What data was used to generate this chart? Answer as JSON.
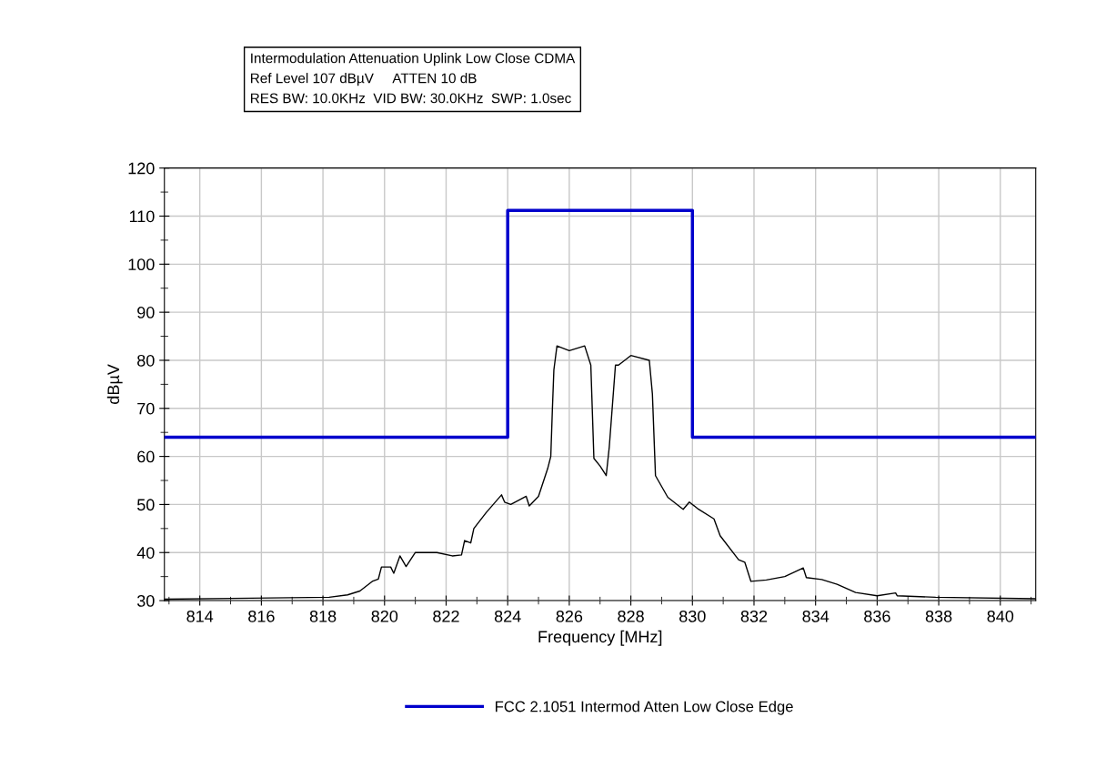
{
  "chart_data": {
    "type": "line",
    "title": "Intermodulation Attenuation Uplink Low Close CDMA",
    "subtitle": "Ref Level 107 dBµV     ATTEN 10 dB\nRES BW: 10.0KHz  VID BW: 30.0KHz  SWP: 1.0sec",
    "xlabel": "Frequency [MHz]",
    "ylabel": "dBµV",
    "series": [
      {
        "color": "#000000",
        "x": [
          812.85,
          818.2,
          818.8,
          819.2,
          819.6,
          819.8,
          819.9,
          820.2,
          820.3,
          820.5,
          820.7,
          821.0,
          821.7,
          822.2,
          822.5,
          822.6,
          822.8,
          822.9,
          823.3,
          823.8,
          823.9,
          824.1,
          824.6,
          824.7,
          825.0,
          825.3,
          825.4,
          825.45,
          825.5,
          825.6,
          826.0,
          826.5,
          826.7,
          826.8,
          827.0,
          827.2,
          827.3,
          827.5,
          827.6,
          828.0,
          828.6,
          828.7,
          828.8,
          829.2,
          829.7,
          829.9,
          830.2,
          830.7,
          830.9,
          831.5,
          831.7,
          831.9,
          832.4,
          833.0,
          833.6,
          833.7,
          834.2,
          834.7,
          835.3,
          836.0,
          836.6,
          836.65,
          837.9,
          841.15
        ],
        "values": [
          30.3,
          30.7,
          31.2,
          32,
          34,
          34.5,
          37,
          37,
          35.7,
          39.3,
          37.1,
          40,
          40,
          39.3,
          39.5,
          42.5,
          42,
          45,
          48.3,
          52,
          50.5,
          50,
          51.7,
          49.7,
          51.7,
          57.5,
          60,
          69.5,
          78,
          83,
          82,
          83,
          79,
          59.6,
          58,
          56,
          62,
          79,
          79,
          81,
          80,
          73,
          56,
          51.5,
          49,
          50.5,
          49,
          47,
          43.5,
          38.5,
          38,
          34,
          34.3,
          35,
          36.8,
          34.8,
          34.4,
          33.4,
          31.7,
          31,
          31.6,
          31,
          30.7,
          30.4
        ]
      },
      {
        "name": "FCC 2.1051 Intermod Atten Low Close Edge",
        "color": "#0000cc",
        "x": [
          812.85,
          824,
          824,
          830,
          830,
          841.15
        ],
        "values": [
          64,
          64,
          111.2,
          111.2,
          64,
          64
        ]
      }
    ],
    "xlim": [
      812.85,
      841.15
    ],
    "ylim": [
      30,
      120
    ],
    "xticks": [
      {
        "value": 813,
        "label": null
      },
      814,
      {
        "value": 815,
        "label": null
      },
      816,
      {
        "value": 817,
        "label": null
      },
      818,
      {
        "value": 819,
        "label": null
      },
      820,
      {
        "value": 821,
        "label": null
      },
      822,
      {
        "value": 823,
        "label": null
      },
      824,
      {
        "value": 825,
        "label": null
      },
      826,
      {
        "value": 827,
        "label": null
      },
      828,
      {
        "value": 829,
        "label": null
      },
      830,
      {
        "value": 831,
        "label": null
      },
      832,
      {
        "value": 833,
        "label": null
      },
      834,
      {
        "value": 835,
        "label": null
      },
      836,
      {
        "value": 837,
        "label": null
      },
      838,
      {
        "value": 839,
        "label": null
      },
      840,
      {
        "value": 841,
        "label": null
      }
    ],
    "yticks": [
      30,
      {
        "value": 35,
        "label": null
      },
      40,
      {
        "value": 45,
        "label": null
      },
      50,
      {
        "value": 55,
        "label": null
      },
      60,
      {
        "value": 65,
        "label": null
      },
      70,
      {
        "value": 75,
        "label": null
      },
      80,
      {
        "value": 85,
        "label": null
      },
      90,
      {
        "value": 95,
        "label": null
      },
      100,
      {
        "value": 105,
        "label": null
      },
      110,
      {
        "value": 115,
        "label": null
      },
      120
    ],
    "grid": true,
    "legend": "bottom",
    "line_style": "solid",
    "marker": "none"
  }
}
